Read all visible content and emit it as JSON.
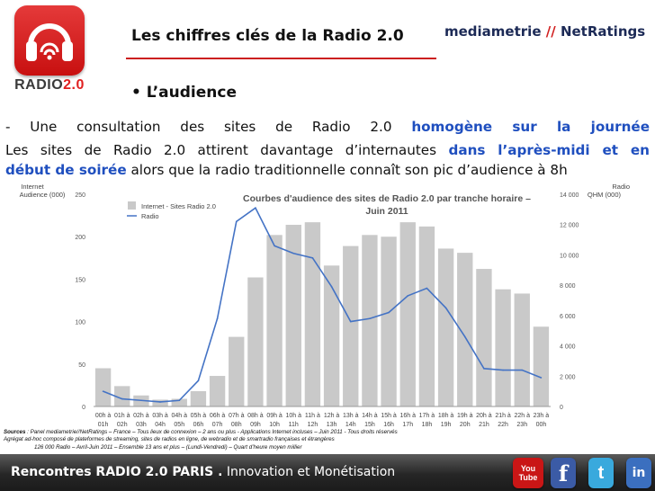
{
  "logo": {
    "word_white": "RADIO",
    "word_red": "2.0"
  },
  "slide": {
    "title": "Les chiffres clés de la Radio 2.0",
    "bullet": "• L’audience"
  },
  "brand": {
    "part1": "mediametrie",
    "part2": "//",
    "part3": "NetRatings"
  },
  "body": {
    "line1_a": "- Une consultation des sites de Radio 2.0 ",
    "line1_b": "homogène sur la journée",
    "line2_a": " Les sites de Radio 2.0 attirent davantage d’internautes ",
    "line2_b": "dans l’après-midi et en",
    "line3_a": "début de soirée",
    "line3_b": " alors que la radio traditionnelle connaît son pic d’audience à 8h"
  },
  "chart_data": {
    "type": "bar",
    "title_line1": "Courbes d'audience des sites de Radio 2.0 par tranche horaire –",
    "title_line2": "Juin 2011",
    "left_axis_label_1": "Internet",
    "left_axis_label_2": "Audience (000)",
    "right_axis_label_1": "Radio",
    "right_axis_label_2": "QHM (000)",
    "ylim_left": [
      0,
      250
    ],
    "yticks_left": [
      "0",
      "50",
      "100",
      "150",
      "200",
      "250"
    ],
    "ylim_right": [
      0,
      14000
    ],
    "yticks_right": [
      "0",
      "2 000",
      "4 000",
      "6 000",
      "8 000",
      "10 000",
      "12 000",
      "14 000"
    ],
    "categories": [
      [
        "00h à",
        "01h"
      ],
      [
        "01h à",
        "02h"
      ],
      [
        "02h à",
        "03h"
      ],
      [
        "03h à",
        "04h"
      ],
      [
        "04h à",
        "05h"
      ],
      [
        "05h à",
        "06h"
      ],
      [
        "06h à",
        "07h"
      ],
      [
        "07h à",
        "08h"
      ],
      [
        "08h à",
        "09h"
      ],
      [
        "09h à",
        "10h"
      ],
      [
        "10h à",
        "11h"
      ],
      [
        "11h à",
        "12h"
      ],
      [
        "12h à",
        "13h"
      ],
      [
        "13h à",
        "14h"
      ],
      [
        "14h à",
        "15h"
      ],
      [
        "15h à",
        "16h"
      ],
      [
        "16h à",
        "17h"
      ],
      [
        "17h à",
        "18h"
      ],
      [
        "18h à",
        "19h"
      ],
      [
        "19h à",
        "20h"
      ],
      [
        "20h à",
        "21h"
      ],
      [
        "21h à",
        "22h"
      ],
      [
        "22h à",
        "23h"
      ],
      [
        "23h à",
        "00h"
      ]
    ],
    "series": [
      {
        "name": "Internet - Sites Radio 2.0",
        "axis": "left",
        "color": "#c9c9c9",
        "values": [
          45,
          24,
          13,
          8,
          9,
          18,
          36,
          82,
          152,
          202,
          214,
          217,
          166,
          189,
          202,
          200,
          217,
          212,
          186,
          181,
          162,
          138,
          133,
          94
        ]
      },
      {
        "name": "Radio",
        "axis": "right",
        "color": "#4473c5",
        "values": [
          1000,
          500,
          400,
          300,
          400,
          1700,
          5800,
          12200,
          13100,
          10600,
          10100,
          9800,
          7900,
          5600,
          5800,
          6200,
          7300,
          7800,
          6500,
          4600,
          2500,
          2400,
          2400,
          1900
        ]
      }
    ],
    "grid": false,
    "legend_position": "top-left"
  },
  "sources": {
    "label": "Sources",
    "line1": " : Panel mediametrie//NetRatings – France – Tous lieux de connexion – 2 ans ou plus - Applications Internet incluses – Juin 2011 - Tous droits réservés",
    "line2": "Agrégat ad-hoc composé de plateformes de streaming, sites de radios en ligne, de webradio et de smartradio françaises et étrangères",
    "line3": "126 000 Radio – Avril-Juin 2011 – Ensemble 13 ans et plus – (Lundi-Vendredi) – Quart d’heure moyen millier"
  },
  "footer": {
    "title": "Rencontres RADIO 2.0 PARIS .",
    "subtitle": " Innovation et Monétisation",
    "youtube_1": "You",
    "youtube_2": "Tube",
    "facebook": "f",
    "twitter": "t",
    "linkedin": "in"
  }
}
